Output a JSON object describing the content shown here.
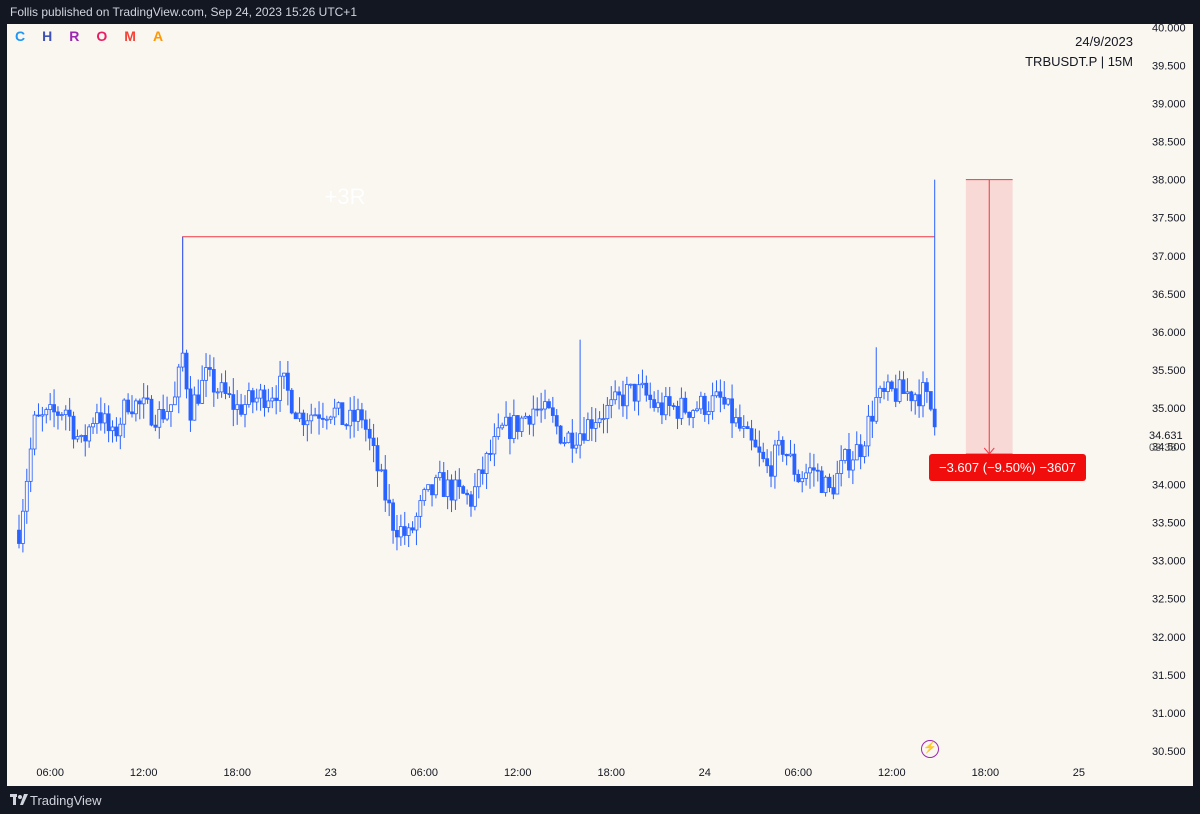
{
  "header": {
    "published": "Follis published on TradingView.com, Sep 24, 2023 15:26 UTC+1"
  },
  "brand": {
    "letters": [
      "C",
      "H",
      "R",
      "O",
      "M",
      "A"
    ],
    "colors": [
      "#2196f3",
      "#3f51b5",
      "#9c27b0",
      "#e91e63",
      "#f44336",
      "#ff9800"
    ]
  },
  "chart_info": {
    "date": "24/9/2023",
    "symbol": "TRBUSDT.P | 15M"
  },
  "annotations": {
    "risk_label": "+3R",
    "measure": "−3.607 (−9.50%) −3607"
  },
  "last_price": {
    "value": "34.631",
    "countdown": "03:38"
  },
  "footer": {
    "brand": "TradingView",
    "logo": "tradingview-logo-icon"
  },
  "chart_data": {
    "type": "candlestick",
    "title": "",
    "symbol": "TRBUSDT.P",
    "interval": "15M",
    "ylim": [
      30.2,
      40.2
    ],
    "y_ticks": [
      30.5,
      31.0,
      31.5,
      32.0,
      32.5,
      33.0,
      33.5,
      34.0,
      34.5,
      35.0,
      35.5,
      36.0,
      36.5,
      37.0,
      37.5,
      38.0,
      38.5,
      39.0,
      39.5,
      40.0
    ],
    "y_tick_labels": [
      "30.500",
      "31.000",
      "31.500",
      "32.000",
      "32.500",
      "33.000",
      "33.500",
      "34.000",
      "34.500",
      "35.000",
      "35.500",
      "36.000",
      "36.500",
      "37.000",
      "37.500",
      "38.000",
      "38.500",
      "39.000",
      "39.500",
      "40.000"
    ],
    "x_ticks": [
      "06:00",
      "12:00",
      "18:00",
      "23",
      "06:00",
      "12:00",
      "18:00",
      "24",
      "06:00",
      "12:00",
      "18:00",
      "25"
    ],
    "x_tick_times": [
      "2023-09-22 06:00",
      "2023-09-22 12:00",
      "2023-09-22 18:00",
      "2023-09-23 00:00",
      "2023-09-23 06:00",
      "2023-09-23 12:00",
      "2023-09-23 18:00",
      "2023-09-24 00:00",
      "2023-09-24 06:00",
      "2023-09-24 12:00",
      "2023-09-24 18:00",
      "2023-09-25 00:00"
    ],
    "x_range": [
      "2023-09-22 04:00",
      "2023-09-25 04:30"
    ],
    "price_path": [
      [
        "2023-09-22 04:00",
        33.4
      ],
      [
        "2023-09-22 05:00",
        34.8
      ],
      [
        "2023-09-22 07:00",
        35.0
      ],
      [
        "2023-09-22 08:00",
        34.5
      ],
      [
        "2023-09-22 09:00",
        35.0
      ],
      [
        "2023-09-22 10:00",
        34.6
      ],
      [
        "2023-09-22 11:00",
        35.1
      ],
      [
        "2023-09-22 13:00",
        34.9
      ],
      [
        "2023-09-22 14:00",
        35.1
      ],
      [
        "2023-09-22 14:30",
        35.7
      ],
      [
        "2023-09-22 15:00",
        35.0
      ],
      [
        "2023-09-22 16:00",
        35.4
      ],
      [
        "2023-09-22 18:00",
        35.0
      ],
      [
        "2023-09-22 20:00",
        35.2
      ],
      [
        "2023-09-22 21:00",
        35.3
      ],
      [
        "2023-09-22 22:00",
        34.9
      ],
      [
        "2023-09-23 00:00",
        35.0
      ],
      [
        "2023-09-23 01:00",
        34.8
      ],
      [
        "2023-09-23 02:00",
        34.9
      ],
      [
        "2023-09-23 03:00",
        34.2
      ],
      [
        "2023-09-23 04:00",
        33.5
      ],
      [
        "2023-09-23 05:00",
        33.3
      ],
      [
        "2023-09-23 06:00",
        33.8
      ],
      [
        "2023-09-23 07:00",
        34.0
      ],
      [
        "2023-09-23 08:00",
        33.9
      ],
      [
        "2023-09-23 09:00",
        33.8
      ],
      [
        "2023-09-23 10:00",
        34.3
      ],
      [
        "2023-09-23 11:00",
        34.7
      ],
      [
        "2023-09-23 12:00",
        34.8
      ],
      [
        "2023-09-23 13:00",
        35.0
      ],
      [
        "2023-09-23 14:00",
        34.9
      ],
      [
        "2023-09-23 15:00",
        34.6
      ],
      [
        "2023-09-23 16:00",
        34.7
      ],
      [
        "2023-09-23 17:00",
        34.9
      ],
      [
        "2023-09-23 18:00",
        35.0
      ],
      [
        "2023-09-23 19:00",
        35.2
      ],
      [
        "2023-09-23 20:00",
        35.2
      ],
      [
        "2023-09-23 21:00",
        35.0
      ],
      [
        "2023-09-23 22:00",
        35.0
      ],
      [
        "2023-09-23 23:00",
        35.0
      ],
      [
        "2023-09-24 01:00",
        35.1
      ],
      [
        "2023-09-24 02:00",
        34.8
      ],
      [
        "2023-09-24 03:00",
        34.5
      ],
      [
        "2023-09-24 04:00",
        34.2
      ],
      [
        "2023-09-24 05:00",
        34.5
      ],
      [
        "2023-09-24 06:00",
        34.1
      ],
      [
        "2023-09-24 07:00",
        34.2
      ],
      [
        "2023-09-24 08:00",
        33.9
      ],
      [
        "2023-09-24 09:00",
        34.3
      ],
      [
        "2023-09-24 10:00",
        34.5
      ],
      [
        "2023-09-24 11:00",
        35.1
      ],
      [
        "2023-09-24 12:00",
        35.2
      ],
      [
        "2023-09-24 13:00",
        35.2
      ],
      [
        "2023-09-24 14:00",
        35.2
      ],
      [
        "2023-09-24 14:45",
        34.9
      ]
    ],
    "spikes": [
      {
        "time": "2023-09-22 14:30",
        "high": 37.25
      },
      {
        "time": "2023-09-23 16:00",
        "high": 35.9
      },
      {
        "time": "2023-09-24 11:00",
        "high": 35.8
      },
      {
        "time": "2023-09-24 14:45",
        "high": 38.0
      }
    ],
    "resistance_line": {
      "value": 37.25,
      "from": "2023-09-22 14:30",
      "to": "2023-09-24 14:45"
    },
    "measure": {
      "from": 38.0,
      "to": 34.4,
      "time_from": "2023-09-24 16:45",
      "time_to": "2023-09-24 19:45"
    },
    "last_price": 34.631,
    "candle_color": "#2962ff",
    "up_fill": "#faf6f0",
    "down_fill": "#2962ff",
    "annotation_color": "#f23645"
  }
}
